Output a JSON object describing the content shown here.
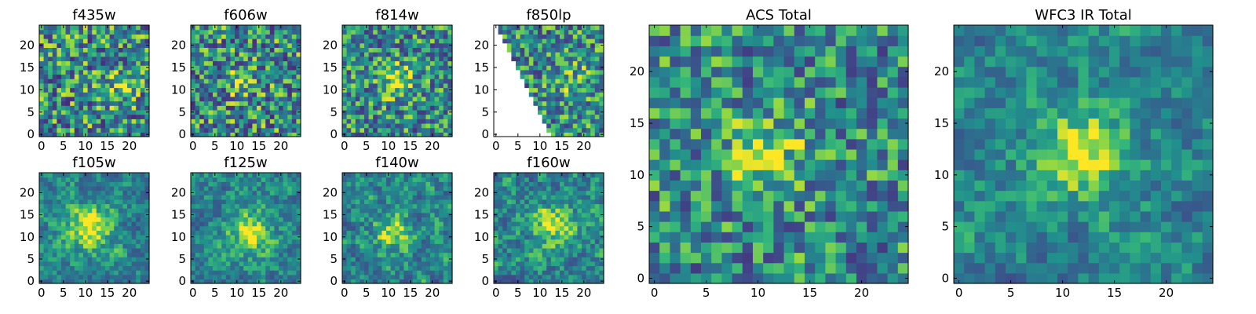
{
  "colormap": "viridis",
  "colors": {
    "frame": "#000000",
    "background": "#ffffff"
  },
  "chart_data": [
    {
      "type": "heatmap",
      "title": "f435w",
      "xticks": [
        "0",
        "5",
        "10",
        "15",
        "20"
      ],
      "yticks": [
        "0",
        "5",
        "10",
        "15",
        "20"
      ],
      "xlim": [
        -0.5,
        24.5
      ],
      "ylim": [
        -0.5,
        24.5
      ],
      "grid_size": 25,
      "seed": 11,
      "smooth": 0,
      "noise": 0.5,
      "signal": 0.18,
      "center": [
        17,
        11
      ],
      "sigma": 3
    },
    {
      "type": "heatmap",
      "title": "f606w",
      "xticks": [
        "0",
        "5",
        "10",
        "15",
        "20"
      ],
      "yticks": [
        "0",
        "5",
        "10",
        "15",
        "20"
      ],
      "xlim": [
        -0.5,
        24.5
      ],
      "ylim": [
        -0.5,
        24.5
      ],
      "grid_size": 25,
      "seed": 23,
      "smooth": 0,
      "noise": 0.5,
      "signal": 0.35,
      "center": [
        11,
        12
      ],
      "sigma": 2
    },
    {
      "type": "heatmap",
      "title": "f814w",
      "xticks": [
        "0",
        "5",
        "10",
        "15",
        "20"
      ],
      "yticks": [
        "0",
        "5",
        "10",
        "15",
        "20"
      ],
      "xlim": [
        -0.5,
        24.5
      ],
      "ylim": [
        -0.5,
        24.5
      ],
      "grid_size": 25,
      "seed": 37,
      "smooth": 0,
      "noise": 0.45,
      "signal": 0.4,
      "center": [
        12,
        12
      ],
      "sigma": 2.5
    },
    {
      "type": "heatmap",
      "title": "f850lp",
      "xticks": [
        "0",
        "5",
        "10",
        "15",
        "20"
      ],
      "yticks": [
        "0",
        "5",
        "10",
        "15",
        "20"
      ],
      "xlim": [
        -0.5,
        24.5
      ],
      "ylim": [
        -0.5,
        24.5
      ],
      "grid_size": 25,
      "seed": 41,
      "smooth": 0,
      "noise": 0.45,
      "signal": 0.2,
      "center": [
        17,
        12
      ],
      "sigma": 3,
      "mask": "lower-left-triangle"
    },
    {
      "type": "heatmap",
      "title": "f105w",
      "xticks": [
        "0",
        "5",
        "10",
        "15",
        "20"
      ],
      "yticks": [
        "0",
        "5",
        "10",
        "15",
        "20"
      ],
      "xlim": [
        -0.5,
        24.5
      ],
      "ylim": [
        -0.5,
        24.5
      ],
      "grid_size": 25,
      "seed": 53,
      "smooth": 1,
      "noise": 0.4,
      "signal": 0.45,
      "center": [
        11,
        12
      ],
      "sigma": 3.5
    },
    {
      "type": "heatmap",
      "title": "f125w",
      "xticks": [
        "0",
        "5",
        "10",
        "15",
        "20"
      ],
      "yticks": [
        "0",
        "5",
        "10",
        "15",
        "20"
      ],
      "xlim": [
        -0.5,
        24.5
      ],
      "ylim": [
        -0.5,
        24.5
      ],
      "grid_size": 25,
      "seed": 67,
      "smooth": 1,
      "noise": 0.4,
      "signal": 0.4,
      "center": [
        13,
        11
      ],
      "sigma": 3.5
    },
    {
      "type": "heatmap",
      "title": "f140w",
      "xticks": [
        "0",
        "5",
        "10",
        "15",
        "20"
      ],
      "yticks": [
        "0",
        "5",
        "10",
        "15",
        "20"
      ],
      "xlim": [
        -0.5,
        24.5
      ],
      "ylim": [
        -0.5,
        24.5
      ],
      "grid_size": 25,
      "seed": 79,
      "smooth": 1,
      "noise": 0.45,
      "signal": 0.35,
      "center": [
        11,
        11
      ],
      "sigma": 3
    },
    {
      "type": "heatmap",
      "title": "f160w",
      "xticks": [
        "0",
        "5",
        "10",
        "15",
        "20"
      ],
      "yticks": [
        "0",
        "5",
        "10",
        "15",
        "20"
      ],
      "xlim": [
        -0.5,
        24.5
      ],
      "ylim": [
        -0.5,
        24.5
      ],
      "grid_size": 25,
      "seed": 97,
      "smooth": 1,
      "noise": 0.45,
      "signal": 0.4,
      "center": [
        13,
        13
      ],
      "sigma": 3
    },
    {
      "type": "heatmap",
      "title": "ACS Total",
      "xticks": [
        "0",
        "5",
        "10",
        "15",
        "20"
      ],
      "yticks": [
        "0",
        "5",
        "10",
        "15",
        "20"
      ],
      "xlim": [
        -0.5,
        24.5
      ],
      "ylim": [
        -0.5,
        24.5
      ],
      "grid_size": 25,
      "seed": 131,
      "smooth": 0,
      "noise": 0.42,
      "signal": 0.4,
      "center": [
        11,
        12
      ],
      "sigma": 2.5
    },
    {
      "type": "heatmap",
      "title": "WFC3 IR Total",
      "xticks": [
        "0",
        "5",
        "10",
        "15",
        "20"
      ],
      "yticks": [
        "0",
        "5",
        "10",
        "15",
        "20"
      ],
      "xlim": [
        -0.5,
        24.5
      ],
      "ylim": [
        -0.5,
        24.5
      ],
      "grid_size": 25,
      "seed": 157,
      "smooth": 1,
      "noise": 0.38,
      "signal": 0.45,
      "center": [
        12,
        12
      ],
      "sigma": 3
    }
  ]
}
